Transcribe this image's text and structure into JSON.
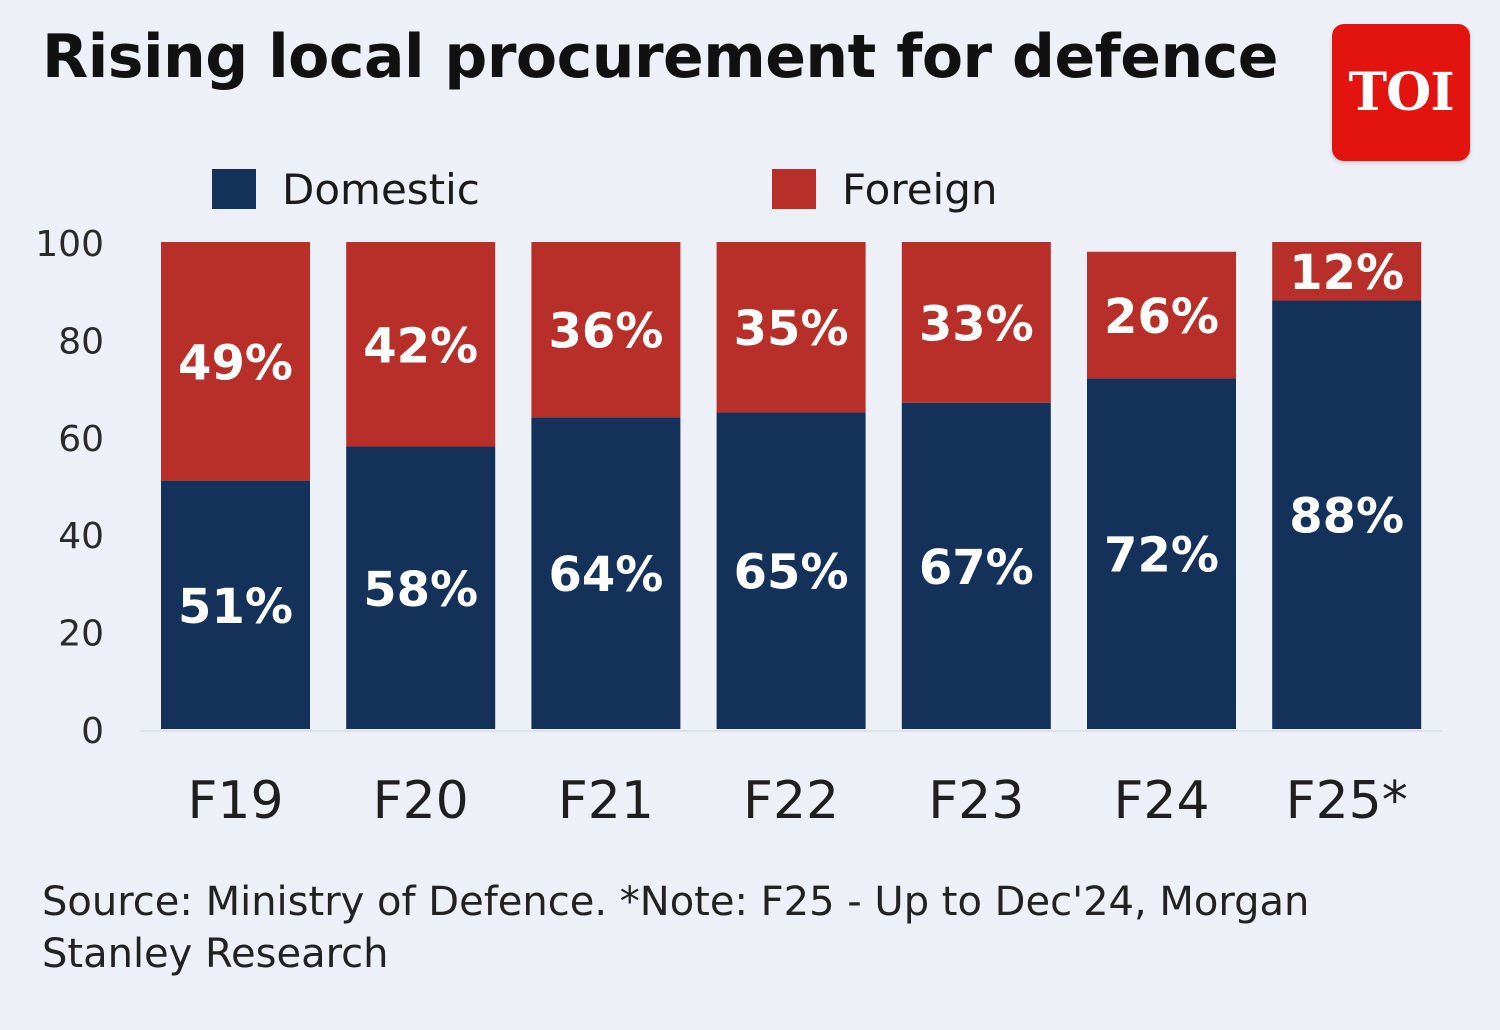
{
  "title": "Rising local procurement for defence",
  "logo_text": "TOI",
  "source": "Source: Ministry of Defence. *Note: F25 - Up to Dec'24, Morgan Stanley Research",
  "colors": {
    "domestic": "#14315a",
    "foreign": "#b72f28",
    "background": "#edf0f6",
    "logo": "#e3140f"
  },
  "chart_data": {
    "type": "bar",
    "stacked": true,
    "categories": [
      "F19",
      "F20",
      "F21",
      "F22",
      "F23",
      "F24",
      "F25*"
    ],
    "series": [
      {
        "name": "Domestic",
        "values": [
          51,
          58,
          64,
          65,
          67,
          72,
          88
        ],
        "labels": [
          "51%",
          "58%",
          "64%",
          "65%",
          "67%",
          "72%",
          "88%"
        ]
      },
      {
        "name": "Foreign",
        "values": [
          49,
          42,
          36,
          35,
          33,
          26,
          12
        ],
        "labels": [
          "49%",
          "42%",
          "36%",
          "35%",
          "33%",
          "26%",
          "12%"
        ]
      }
    ],
    "ylim": [
      0,
      100
    ],
    "yticks": [
      "0",
      "20",
      "40",
      "60",
      "80",
      "100"
    ],
    "legend_position": "top",
    "grid": false
  }
}
